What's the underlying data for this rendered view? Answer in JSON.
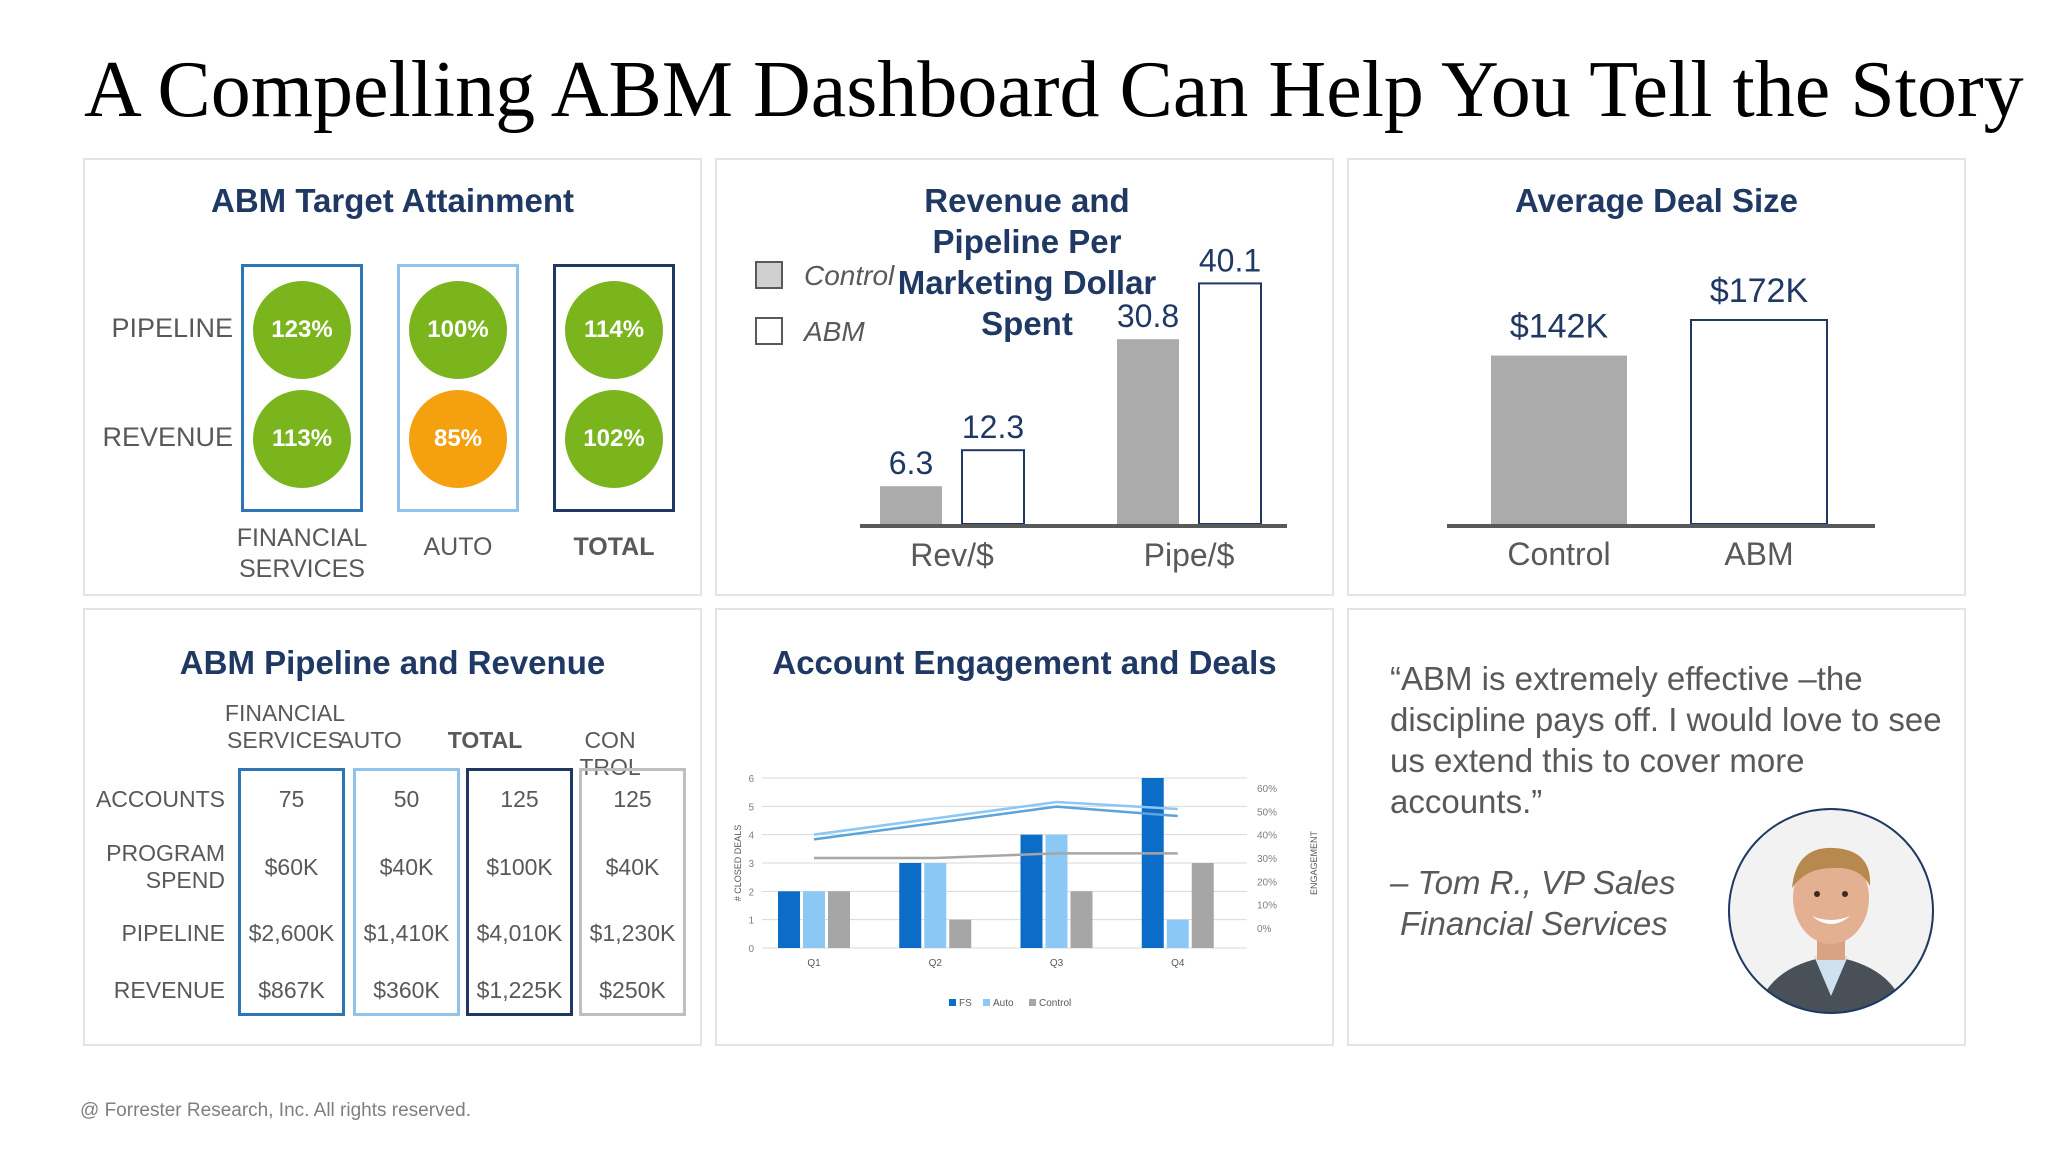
{
  "title": "A Compelling ABM Dashboard Can Help You Tell the Story",
  "footer": "@ Forrester Research, Inc. All rights reserved.",
  "colors": {
    "title_blue": "#1f3864",
    "green": "#7ab51d",
    "orange": "#f5a00f",
    "bar_gray": "#ababab",
    "frame_fs": "#2e75b6",
    "frame_auto": "#8fc3ea",
    "frame_total": "#1f3864",
    "frame_control": "#bfbfbf"
  },
  "target_attainment": {
    "title": "ABM Target Attainment",
    "row_labels": [
      "PIPELINE",
      "REVENUE"
    ],
    "columns": [
      {
        "label": "FINANCIAL SERVICES",
        "pipeline": "123%",
        "revenue": "113%",
        "revenue_color": "green"
      },
      {
        "label": "AUTO",
        "pipeline": "100%",
        "revenue": "85%",
        "revenue_color": "orange"
      },
      {
        "label": "TOTAL",
        "pipeline": "114%",
        "revenue": "102%",
        "revenue_color": "green"
      }
    ]
  },
  "pipeline_revenue": {
    "title": "ABM Pipeline and Revenue",
    "headers": [
      "FINANCIAL SERVICES",
      "AUTO",
      "TOTAL",
      "CONTROL"
    ],
    "row_labels": [
      "ACCOUNTS",
      "PROGRAM SPEND",
      "PIPELINE",
      "REVENUE"
    ],
    "columns": [
      [
        "75",
        "$60K",
        "$2,600K",
        "$867K"
      ],
      [
        "50",
        "$40K",
        "$1,410K",
        "$360K"
      ],
      [
        "125",
        "$100K",
        "$4,010K",
        "$1,225K"
      ],
      [
        "125",
        "$40K",
        "$1,230K",
        "$250K"
      ]
    ]
  },
  "quote": {
    "text": "“ABM is extremely effective –the discipline pays off. I would love to see us extend this to cover more accounts.”",
    "attribution_line1": "– Tom R., VP Sales",
    "attribution_line2": "Financial Services"
  },
  "chart_data": [
    {
      "type": "bar",
      "title": "Revenue and Pipeline Per Marketing Dollar Spent",
      "categories": [
        "Rev/$",
        "Pipe/$"
      ],
      "series": [
        {
          "name": "Control",
          "values": [
            6.3,
            30.8
          ]
        },
        {
          "name": "ABM",
          "values": [
            12.3,
            40.1
          ]
        }
      ],
      "value_labels": [
        [
          "6.3",
          "30.8"
        ],
        [
          "12.3",
          "40.1"
        ]
      ],
      "ylim": [
        0,
        42
      ],
      "legend_position": "top-left"
    },
    {
      "type": "bar",
      "title": "Average Deal Size",
      "categories": [
        "Control",
        "ABM"
      ],
      "values": [
        142,
        172
      ],
      "value_labels": [
        "$142K",
        "$172K"
      ],
      "ylim": [
        0,
        180
      ]
    },
    {
      "type": "bar",
      "title": "Account Engagement and Deals",
      "categories": [
        "Q1",
        "Q2",
        "Q3",
        "Q4"
      ],
      "series": [
        {
          "name": "FS",
          "values": [
            2,
            3,
            4,
            6
          ]
        },
        {
          "name": "Auto",
          "values": [
            2,
            3,
            4,
            1
          ]
        },
        {
          "name": "Control",
          "values": [
            2,
            1,
            2,
            3
          ]
        }
      ],
      "lines": [
        {
          "name": "FS engagement",
          "values": [
            38,
            45,
            52,
            48
          ]
        },
        {
          "name": "Auto engagement",
          "values": [
            40,
            47,
            54,
            51
          ]
        },
        {
          "name": "Control engagement",
          "values": [
            30,
            30,
            32,
            32
          ]
        }
      ],
      "ylabel": "# CLOSED DEALS",
      "y2label": "ENGAGEMENT",
      "ylim": [
        0,
        6
      ],
      "y2lim": [
        0,
        60
      ],
      "y_ticks": [
        "0",
        "1",
        "2",
        "3",
        "4",
        "5",
        "6"
      ],
      "y2_ticks": [
        "0%",
        "10%",
        "20%",
        "30%",
        "40%",
        "50%",
        "60%"
      ],
      "legend_position": "bottom",
      "grid": true
    }
  ]
}
